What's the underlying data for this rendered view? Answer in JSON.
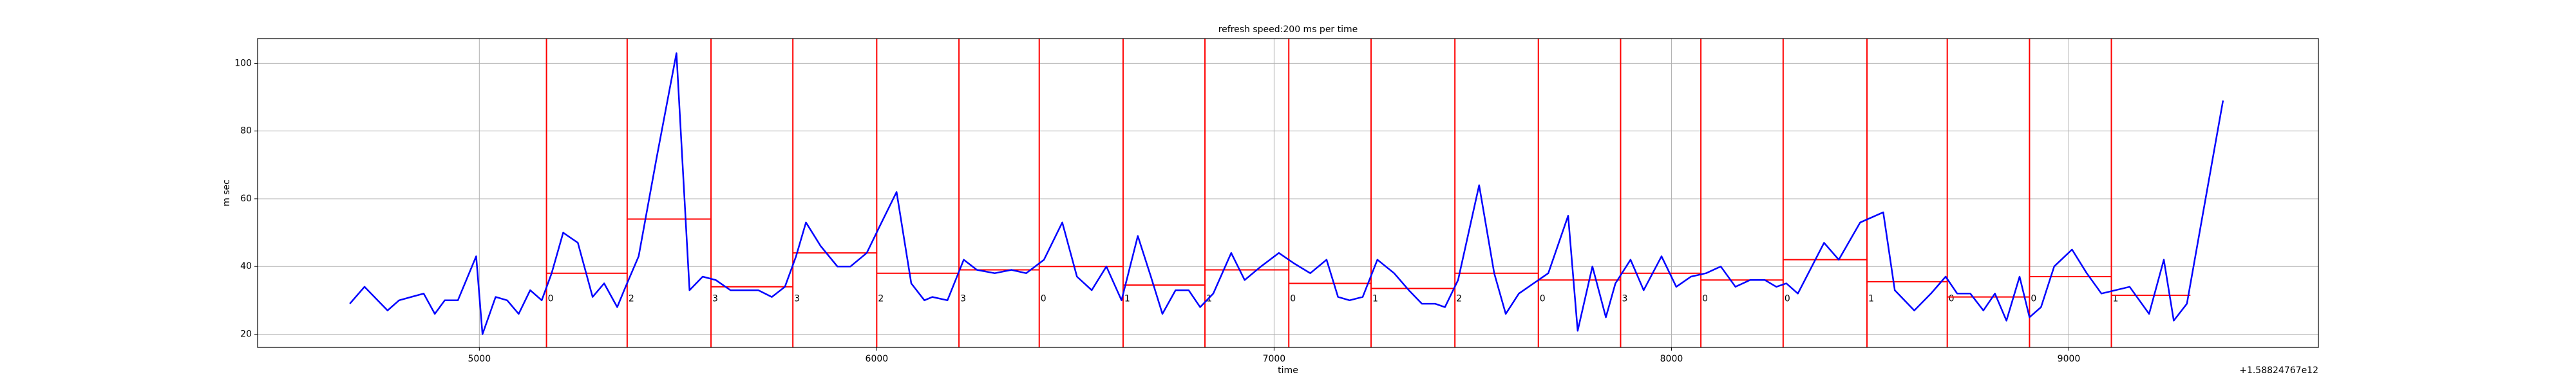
{
  "chart_data": {
    "type": "line",
    "title": "refresh speed:200 ms per time",
    "xlabel": "time",
    "ylabel": "m sec",
    "x_offset_label": "+1.58824767e12",
    "xlim": [
      4442,
      9628
    ],
    "ylim": [
      16.1,
      107.3
    ],
    "xticks": [
      5000,
      6000,
      7000,
      8000,
      9000
    ],
    "yticks": [
      20,
      40,
      60,
      80,
      100
    ],
    "grid": true,
    "series": [
      {
        "color": "#0000ff",
        "x": [
          4674,
          4711,
          4736,
          4769,
          4798,
          4860,
          4888,
          4913,
          4946,
          4992,
          5008,
          5041,
          5070,
          5099,
          5128,
          5157,
          5182,
          5211,
          5248,
          5285,
          5314,
          5347,
          5368,
          5401,
          5446,
          5496,
          5529,
          5562,
          5595,
          5632,
          5674,
          5702,
          5736,
          5769,
          5797,
          5822,
          5859,
          5901,
          5934,
          5975,
          6008,
          6050,
          6087,
          6120,
          6140,
          6178,
          6219,
          6252,
          6297,
          6339,
          6376,
          6421,
          6467,
          6504,
          6541,
          6578,
          6616,
          6657,
          6690,
          6719,
          6752,
          6785,
          6814,
          6847,
          6892,
          6926,
          6967,
          7012,
          7049,
          7091,
          7132,
          7161,
          7190,
          7223,
          7260,
          7302,
          7339,
          7372,
          7405,
          7430,
          7463,
          7516,
          7554,
          7583,
          7616,
          7653,
          7690,
          7740,
          7764,
          7801,
          7835,
          7859,
          7897,
          7930,
          7975,
          8012,
          8049,
          8087,
          8124,
          8161,
          8198,
          8235,
          8264,
          8289,
          8318,
          8384,
          8421,
          8475,
          8533,
          8562,
          8611,
          8653,
          8690,
          8719,
          8752,
          8785,
          8814,
          8843,
          8876,
          8901,
          8930,
          8963,
          9008,
          9045,
          9082,
          9153,
          9202,
          9239,
          9264,
          9297,
          9388
        ],
        "values": [
          29,
          34,
          31,
          27,
          30,
          32,
          26,
          30,
          30,
          43,
          20,
          31,
          30,
          26,
          33,
          30,
          38,
          50,
          47,
          31,
          35,
          28,
          34,
          43,
          72,
          103,
          33,
          37,
          36,
          33,
          33,
          33,
          31,
          34,
          43,
          53,
          46,
          40,
          40,
          44,
          52,
          62,
          35,
          30,
          31,
          30,
          42,
          39,
          38,
          39,
          38,
          42,
          53,
          37,
          33,
          40,
          30,
          49,
          37,
          26,
          33,
          33,
          28,
          32,
          44,
          36,
          40,
          44,
          41,
          38,
          42,
          31,
          30,
          31,
          42,
          38,
          33,
          29,
          29,
          28,
          36,
          64,
          38,
          26,
          32,
          35,
          38,
          55,
          21,
          40,
          25,
          35,
          42,
          33,
          43,
          34,
          37,
          38,
          40,
          34,
          36,
          36,
          34,
          35,
          32,
          47,
          42,
          53,
          56,
          33,
          27,
          32,
          37,
          32,
          32,
          27,
          32,
          24,
          37,
          25,
          28,
          40,
          45,
          38,
          32,
          34,
          26,
          42,
          24,
          29,
          89
        ]
      }
    ],
    "windows": {
      "color": "#ff0000",
      "bounds": [
        5169,
        5372,
        5583,
        5789,
        6000,
        6207,
        6409,
        6620,
        6826,
        7037,
        7244,
        7455,
        7665,
        7872,
        8074,
        8281,
        8492,
        8694,
        8901,
        9107,
        9306
      ],
      "levels": [
        38,
        54,
        34,
        44,
        38,
        39,
        40,
        34.5,
        39,
        35,
        33.5,
        38,
        36,
        38,
        36,
        42,
        35.5,
        31,
        37,
        31.5
      ],
      "labels": [
        0,
        2,
        3,
        3,
        2,
        3,
        0,
        1,
        1,
        0,
        1,
        2,
        0,
        3,
        0,
        0,
        1,
        0,
        0,
        1
      ]
    }
  }
}
